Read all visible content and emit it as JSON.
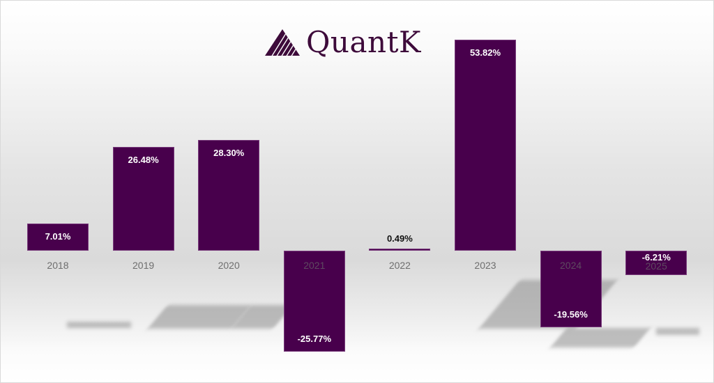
{
  "logo": {
    "text": "QuantK",
    "icon": "triangle-stripes-logo-icon"
  },
  "colors": {
    "bar": "#48004c",
    "bar_border": "#7a3d7d",
    "logo": "#3d0a3a",
    "category_label": "#6e6e6e"
  },
  "chart_data": {
    "type": "bar",
    "title": "QuantK",
    "categories": [
      "2018",
      "2019",
      "2020",
      "2021",
      "2022",
      "2023",
      "2024",
      "2025"
    ],
    "values": [
      7.01,
      26.48,
      28.3,
      -25.77,
      0.49,
      53.82,
      -19.56,
      -6.21
    ],
    "value_labels": [
      "7.01%",
      "26.48%",
      "28.30%",
      "-25.77%",
      "0.49%",
      "53.82%",
      "-19.56%",
      "-6.21%"
    ],
    "xlabel": "",
    "ylabel": "",
    "ylim": [
      -27,
      55
    ],
    "grid": false,
    "legend": "none",
    "unit": "%"
  }
}
